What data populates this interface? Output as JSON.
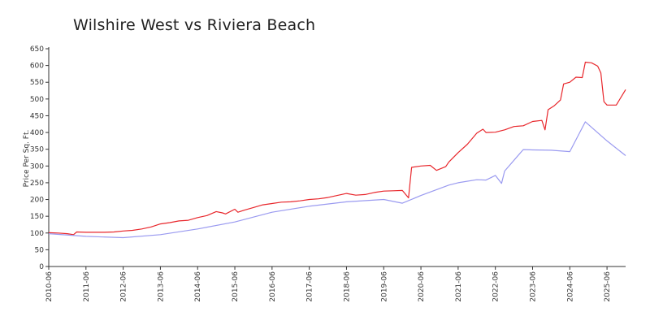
{
  "chart_data": {
    "type": "line",
    "title": "Wilshire West vs Riviera Beach",
    "xlabel": "",
    "ylabel": "Price Per Sq. Ft.",
    "ylim": [
      0,
      650
    ],
    "yticks": [
      0,
      50,
      100,
      150,
      200,
      250,
      300,
      350,
      400,
      450,
      500,
      550,
      600,
      650
    ],
    "xlim": [
      "2010-06",
      "2025-12"
    ],
    "xticks": [
      "2010-06",
      "2011-06",
      "2012-06",
      "2013-06",
      "2014-06",
      "2015-06",
      "2016-06",
      "2017-06",
      "2018-06",
      "2019-06",
      "2020-06",
      "2021-06",
      "2022-06",
      "2023-06",
      "2024-06",
      "2025-06"
    ],
    "grid": false,
    "legend": "none",
    "series": [
      {
        "color": "#e8262b",
        "points": [
          [
            "2010-06",
            101
          ],
          [
            "2010-09",
            100
          ],
          [
            "2010-12",
            98
          ],
          [
            "2011-02",
            95
          ],
          [
            "2011-03",
            103
          ],
          [
            "2011-06",
            102
          ],
          [
            "2011-12",
            102
          ],
          [
            "2012-03",
            103
          ],
          [
            "2012-06",
            106
          ],
          [
            "2012-09",
            108
          ],
          [
            "2012-12",
            112
          ],
          [
            "2013-03",
            118
          ],
          [
            "2013-06",
            127
          ],
          [
            "2013-09",
            131
          ],
          [
            "2013-12",
            136
          ],
          [
            "2014-03",
            138
          ],
          [
            "2014-06",
            146
          ],
          [
            "2014-09",
            152
          ],
          [
            "2014-12",
            164
          ],
          [
            "2015-02",
            160
          ],
          [
            "2015-03",
            157
          ],
          [
            "2015-06",
            171
          ],
          [
            "2015-07",
            162
          ],
          [
            "2015-09",
            168
          ],
          [
            "2015-12",
            176
          ],
          [
            "2016-03",
            184
          ],
          [
            "2016-06",
            188
          ],
          [
            "2016-09",
            192
          ],
          [
            "2016-12",
            193
          ],
          [
            "2017-03",
            196
          ],
          [
            "2017-06",
            200
          ],
          [
            "2017-09",
            202
          ],
          [
            "2017-12",
            206
          ],
          [
            "2018-03",
            212
          ],
          [
            "2018-06",
            218
          ],
          [
            "2018-09",
            213
          ],
          [
            "2018-12",
            215
          ],
          [
            "2019-03",
            221
          ],
          [
            "2019-06",
            225
          ],
          [
            "2019-09",
            226
          ],
          [
            "2019-12",
            227
          ],
          [
            "2020-02",
            205
          ],
          [
            "2020-03",
            296
          ],
          [
            "2020-06",
            300
          ],
          [
            "2020-09",
            302
          ],
          [
            "2020-11",
            287
          ],
          [
            "2021-02",
            298
          ],
          [
            "2021-03",
            312
          ],
          [
            "2021-06",
            340
          ],
          [
            "2021-09",
            365
          ],
          [
            "2021-12",
            398
          ],
          [
            "2022-02",
            410
          ],
          [
            "2022-03",
            400
          ],
          [
            "2022-06",
            401
          ],
          [
            "2022-09",
            408
          ],
          [
            "2022-12",
            418
          ],
          [
            "2023-03",
            420
          ],
          [
            "2023-06",
            433
          ],
          [
            "2023-09",
            436
          ],
          [
            "2023-10",
            408
          ],
          [
            "2023-11",
            468
          ],
          [
            "2024-01",
            480
          ],
          [
            "2024-03",
            497
          ],
          [
            "2024-04",
            545
          ],
          [
            "2024-06",
            550
          ],
          [
            "2024-08",
            565
          ],
          [
            "2024-10",
            564
          ],
          [
            "2024-11",
            610
          ],
          [
            "2025-01",
            608
          ],
          [
            "2025-03",
            598
          ],
          [
            "2025-04",
            578
          ],
          [
            "2025-05",
            492
          ],
          [
            "2025-06",
            482
          ],
          [
            "2025-09",
            482
          ],
          [
            "2025-12",
            528
          ]
        ]
      },
      {
        "color": "#9a9af0",
        "points": [
          [
            "2010-06",
            98
          ],
          [
            "2011-06",
            90
          ],
          [
            "2012-06",
            86
          ],
          [
            "2013-06",
            95
          ],
          [
            "2014-06",
            112
          ],
          [
            "2015-06",
            133
          ],
          [
            "2016-06",
            162
          ],
          [
            "2017-06",
            180
          ],
          [
            "2018-06",
            193
          ],
          [
            "2019-06",
            200
          ],
          [
            "2019-12",
            189
          ],
          [
            "2020-06",
            212
          ],
          [
            "2021-03",
            243
          ],
          [
            "2021-06",
            250
          ],
          [
            "2021-12",
            259
          ],
          [
            "2022-03",
            258
          ],
          [
            "2022-06",
            272
          ],
          [
            "2022-08",
            248
          ],
          [
            "2022-09",
            285
          ],
          [
            "2023-03",
            349
          ],
          [
            "2023-06",
            348
          ],
          [
            "2023-12",
            347
          ],
          [
            "2024-06",
            343
          ],
          [
            "2024-11",
            432
          ],
          [
            "2025-06",
            375
          ],
          [
            "2025-12",
            331
          ]
        ]
      }
    ]
  }
}
